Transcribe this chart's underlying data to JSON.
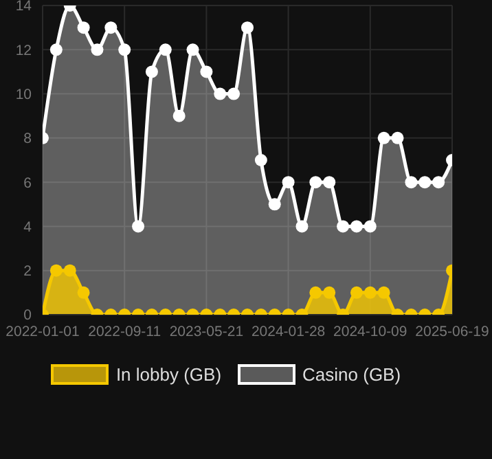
{
  "chart_data": {
    "type": "area",
    "categories": [
      "2022-01-01",
      null,
      null,
      null,
      null,
      null,
      "2022-09-11",
      null,
      null,
      null,
      null,
      null,
      "2023-05-21",
      null,
      null,
      null,
      null,
      null,
      "2024-01-28",
      null,
      null,
      null,
      null,
      null,
      "2024-10-09",
      null,
      null,
      null,
      null,
      null,
      "2025-06-19"
    ],
    "series": [
      {
        "name": "In lobby (GB)",
        "color": "#f5c800",
        "values": [
          0,
          2,
          2,
          1,
          0,
          0,
          0,
          0,
          0,
          0,
          0,
          0,
          0,
          0,
          0,
          0,
          0,
          0,
          0,
          0,
          1,
          1,
          0,
          1,
          1,
          1,
          0,
          0,
          0,
          0,
          2
        ]
      },
      {
        "name": "Casino (GB)",
        "color": "#ffffff",
        "values": [
          8,
          12,
          14,
          13,
          12,
          13,
          12,
          4,
          11,
          12,
          9,
          12,
          11,
          10,
          10,
          13,
          7,
          5,
          6,
          4,
          6,
          6,
          4,
          4,
          4,
          8,
          8,
          6,
          6,
          6,
          7
        ]
      }
    ],
    "ylim": [
      0,
      14
    ],
    "yticks": [
      0,
      2,
      4,
      6,
      8,
      10,
      12,
      14
    ],
    "grid": true,
    "legend": "bottom",
    "marker": "circle"
  }
}
